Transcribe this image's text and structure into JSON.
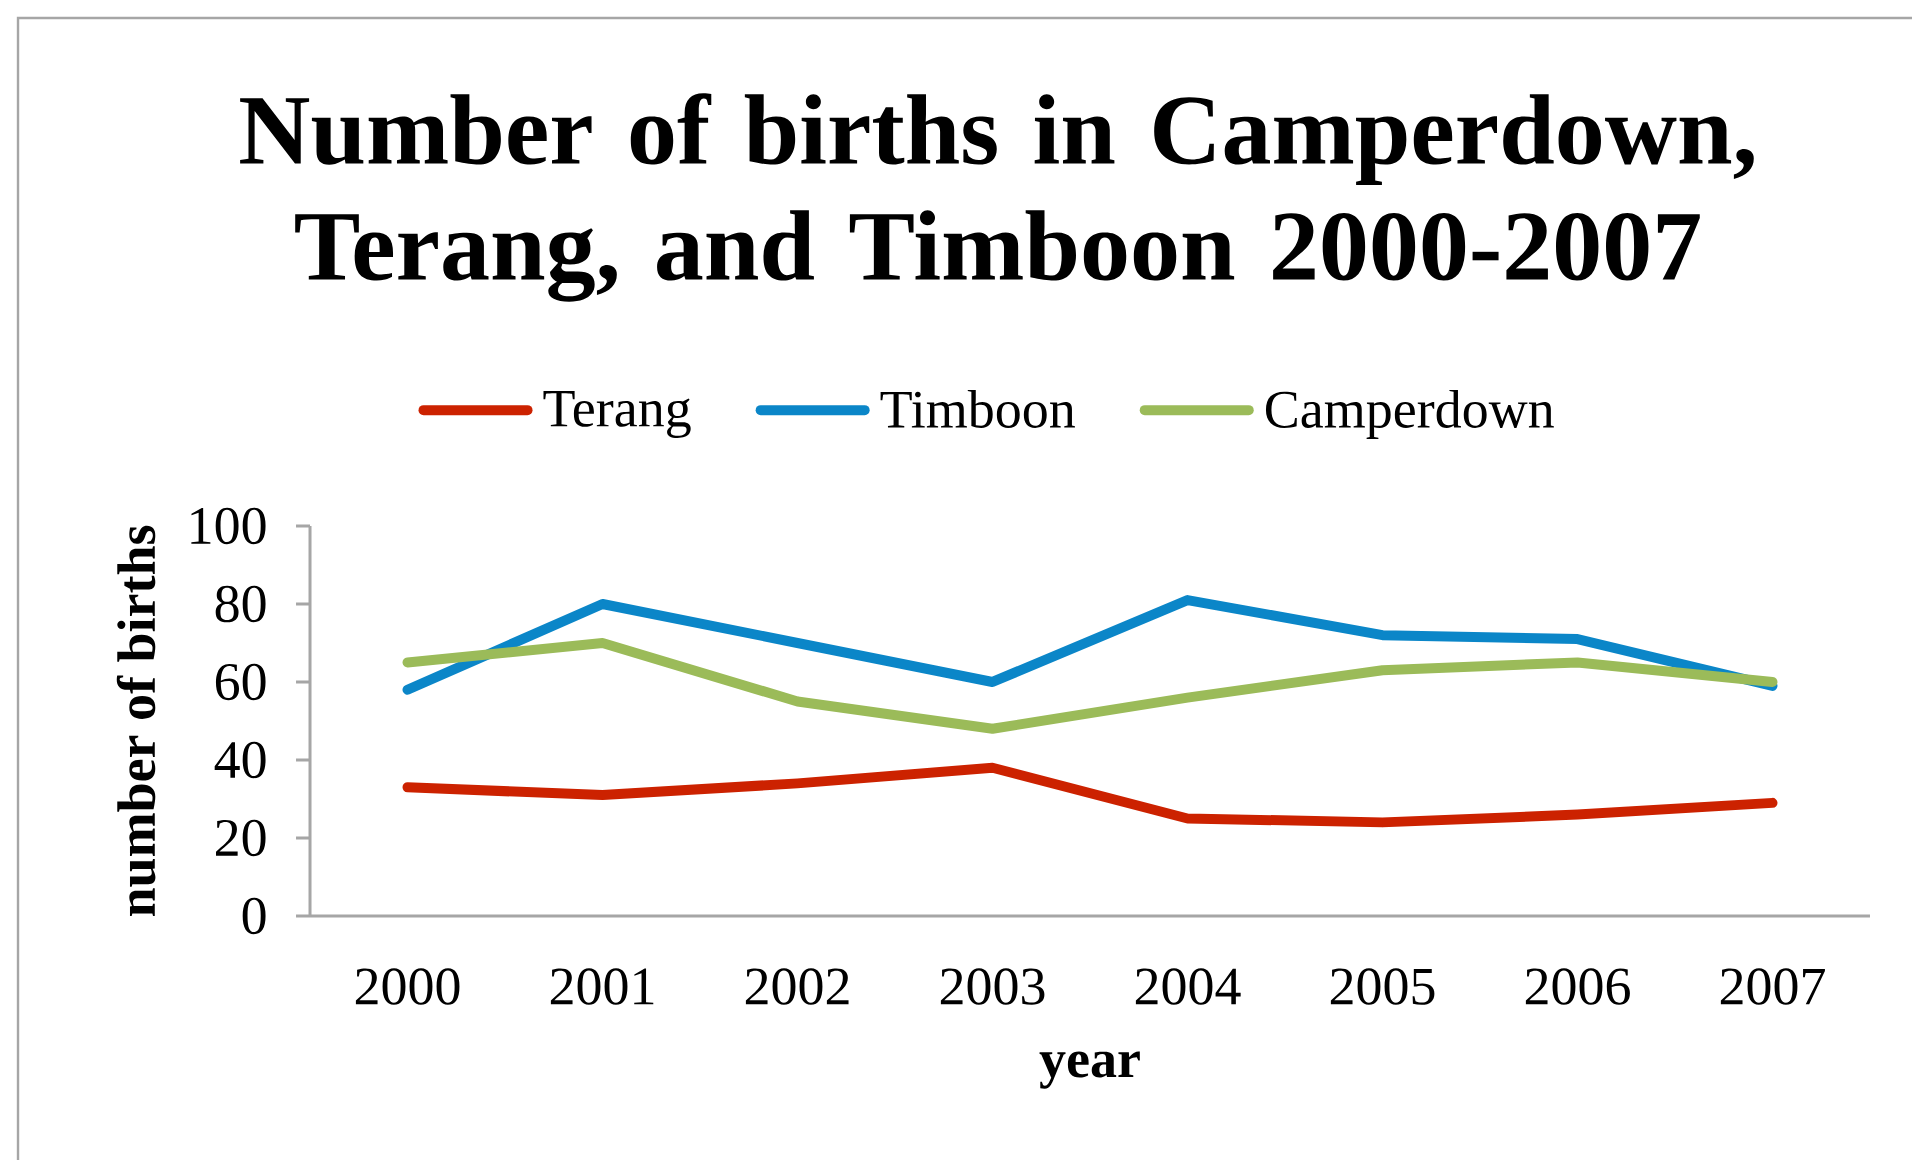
{
  "chart_data": {
    "type": "line",
    "title": "Number of births in Camperdown, Terang, and  Timboon 2000-2007",
    "xlabel": "year",
    "ylabel": "number of births",
    "categories": [
      "2000",
      "2001",
      "2002",
      "2003",
      "2004",
      "2005",
      "2006",
      "2007"
    ],
    "series": [
      {
        "name": "Terang",
        "color": "#cc2200",
        "values": [
          33,
          31,
          34,
          38,
          25,
          24,
          26,
          29
        ]
      },
      {
        "name": "Timboon",
        "color": "#0b86c8",
        "values": [
          58,
          80,
          70,
          60,
          81,
          72,
          71,
          59
        ]
      },
      {
        "name": "Camperdown",
        "color": "#9bbb59",
        "values": [
          65,
          70,
          55,
          48,
          56,
          63,
          65,
          60
        ]
      }
    ],
    "ylim": [
      0,
      100
    ],
    "yticks": [
      0,
      20,
      40,
      60,
      80,
      100
    ],
    "legend": "top"
  }
}
